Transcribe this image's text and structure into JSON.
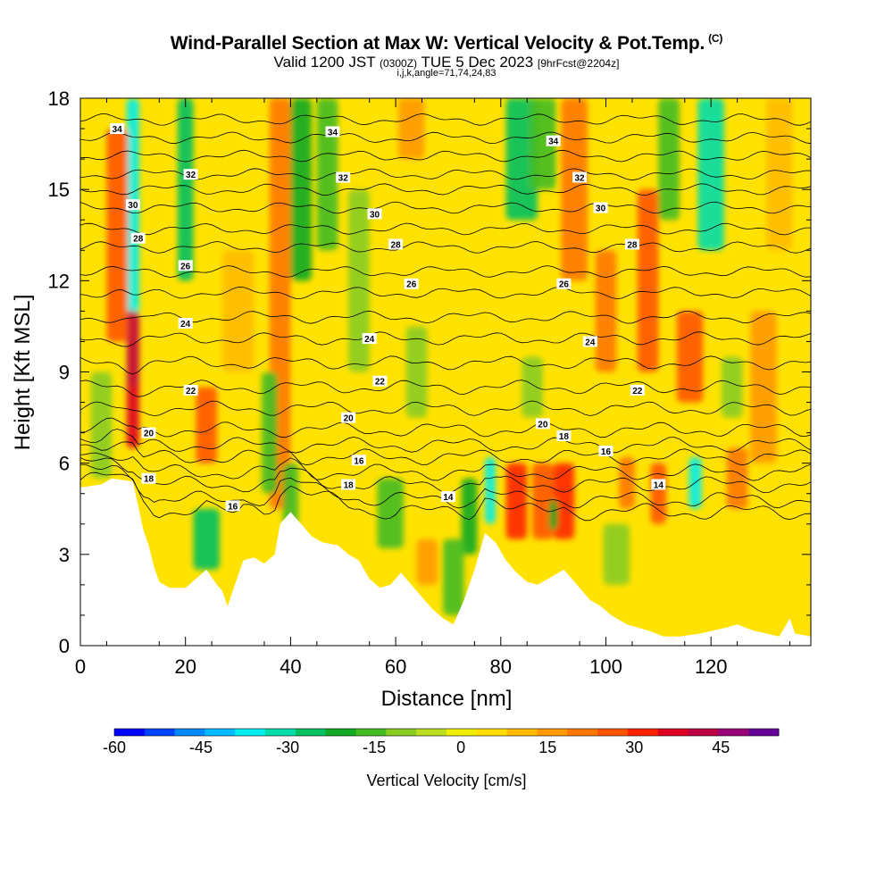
{
  "chart_data": {
    "type": "heatmap",
    "title": "Wind-Parallel Section at Max W: Vertical Velocity & Pot.Temp.",
    "title_mark": "(C)",
    "subtitle": {
      "valid": "Valid 1200 JST",
      "utc": "(0300Z)",
      "date": "TUE 5 Dec 2023",
      "fcst": "[9hrFcst@2204z]"
    },
    "params": "i,j,k,angle=71,74,24,83",
    "xlabel": "Distance [nm]",
    "ylabel": "Height [Kft MSL]",
    "xlim": [
      0,
      139
    ],
    "ylim": [
      0,
      18
    ],
    "xticks": [
      "0",
      "20",
      "40",
      "60",
      "80",
      "100",
      "120"
    ],
    "yticks": [
      "0",
      "3",
      "6",
      "9",
      "12",
      "15",
      "18"
    ],
    "colorbar": {
      "label": "Vertical Velocity [cm/s]",
      "range": [
        -60,
        55
      ],
      "ticks": [
        "-60",
        "-45",
        "-30",
        "-15",
        "0",
        "15",
        "30",
        "45"
      ],
      "colors": [
        "#0000ff",
        "#0044ff",
        "#0088ff",
        "#00bbff",
        "#00eeee",
        "#00ddaa",
        "#00c060",
        "#11aa22",
        "#44bb22",
        "#88cc22",
        "#bbdd22",
        "#eeee00",
        "#ffdd00",
        "#ffbb00",
        "#ff9900",
        "#ff7700",
        "#ff5500",
        "#ff2200",
        "#dd0022",
        "#bb0044",
        "#990077",
        "#660099"
      ]
    },
    "terrain": [
      [
        0,
        5.2
      ],
      [
        4,
        5.3
      ],
      [
        6,
        5.5
      ],
      [
        10,
        5.4
      ],
      [
        11,
        4.6
      ],
      [
        12,
        3.8
      ],
      [
        13,
        3.3
      ],
      [
        14,
        2.6
      ],
      [
        15,
        2.1
      ],
      [
        17,
        1.9
      ],
      [
        20,
        1.9
      ],
      [
        22,
        2.2
      ],
      [
        24,
        2.5
      ],
      [
        26,
        2.0
      ],
      [
        27,
        1.8
      ],
      [
        28,
        1.3
      ],
      [
        29,
        1.8
      ],
      [
        31,
        2.8
      ],
      [
        33,
        2.9
      ],
      [
        35,
        2.7
      ],
      [
        37,
        3.0
      ],
      [
        38,
        4.0
      ],
      [
        40,
        4.4
      ],
      [
        42,
        4.0
      ],
      [
        44,
        3.6
      ],
      [
        46,
        3.4
      ],
      [
        49,
        3.3
      ],
      [
        51,
        3.0
      ],
      [
        53,
        2.8
      ],
      [
        55,
        2.2
      ],
      [
        57,
        1.9
      ],
      [
        59,
        2.0
      ],
      [
        61,
        2.4
      ],
      [
        63,
        2.0
      ],
      [
        65,
        1.6
      ],
      [
        67,
        1.2
      ],
      [
        69,
        0.9
      ],
      [
        71,
        0.7
      ],
      [
        73,
        1.5
      ],
      [
        75,
        2.5
      ],
      [
        77,
        3.7
      ],
      [
        79,
        3.4
      ],
      [
        81,
        2.8
      ],
      [
        83,
        2.4
      ],
      [
        85,
        2.1
      ],
      [
        87,
        2.0
      ],
      [
        90,
        2.3
      ],
      [
        92,
        2.5
      ],
      [
        95,
        1.9
      ],
      [
        97,
        1.5
      ],
      [
        99,
        1.3
      ],
      [
        101,
        1.0
      ],
      [
        104,
        0.7
      ],
      [
        108,
        0.5
      ],
      [
        111,
        0.3
      ],
      [
        114,
        0.3
      ],
      [
        118,
        0.4
      ],
      [
        123,
        0.6
      ],
      [
        125,
        0.7
      ],
      [
        128,
        0.5
      ],
      [
        133,
        0.3
      ],
      [
        135,
        0.9
      ],
      [
        136,
        0.4
      ],
      [
        139,
        0.3
      ]
    ],
    "theta_levels": [
      {
        "theta": 14,
        "base": 4.4
      },
      {
        "theta": 15,
        "base": 4.8
      },
      {
        "theta": 16,
        "base": 5.3
      },
      {
        "theta": 17,
        "base": 5.7
      },
      {
        "theta": 18,
        "base": 6.2
      },
      {
        "theta": 19,
        "base": 6.6
      },
      {
        "theta": 20,
        "base": 7.1
      },
      {
        "theta": 21,
        "base": 7.8
      },
      {
        "theta": 22,
        "base": 8.5
      },
      {
        "theta": 23,
        "base": 9.3
      },
      {
        "theta": 24,
        "base": 10.1
      },
      {
        "theta": 25,
        "base": 10.8
      },
      {
        "theta": 26,
        "base": 11.6
      },
      {
        "theta": 27,
        "base": 12.3
      },
      {
        "theta": 28,
        "base": 13.1
      },
      {
        "theta": 29,
        "base": 13.7
      },
      {
        "theta": 30,
        "base": 14.4
      },
      {
        "theta": 31,
        "base": 15.0
      },
      {
        "theta": 32,
        "base": 15.5
      },
      {
        "theta": 33,
        "base": 16.1
      },
      {
        "theta": 34,
        "base": 16.7
      },
      {
        "theta": 35,
        "base": 17.3
      }
    ],
    "contour_labels": [
      {
        "text": "34",
        "x": 7,
        "y": 17.0
      },
      {
        "text": "34",
        "x": 48,
        "y": 16.9
      },
      {
        "text": "34",
        "x": 90,
        "y": 16.6
      },
      {
        "text": "32",
        "x": 21,
        "y": 15.5
      },
      {
        "text": "32",
        "x": 50,
        "y": 15.4
      },
      {
        "text": "32",
        "x": 95,
        "y": 15.4
      },
      {
        "text": "30",
        "x": 10,
        "y": 14.5
      },
      {
        "text": "30",
        "x": 56,
        "y": 14.2
      },
      {
        "text": "30",
        "x": 99,
        "y": 14.4
      },
      {
        "text": "28",
        "x": 11,
        "y": 13.4
      },
      {
        "text": "28",
        "x": 60,
        "y": 13.2
      },
      {
        "text": "28",
        "x": 105,
        "y": 13.2
      },
      {
        "text": "26",
        "x": 20,
        "y": 12.5
      },
      {
        "text": "26",
        "x": 63,
        "y": 11.9
      },
      {
        "text": "26",
        "x": 92,
        "y": 11.9
      },
      {
        "text": "24",
        "x": 20,
        "y": 10.6
      },
      {
        "text": "24",
        "x": 55,
        "y": 10.1
      },
      {
        "text": "24",
        "x": 97,
        "y": 10.0
      },
      {
        "text": "22",
        "x": 21,
        "y": 8.4
      },
      {
        "text": "22",
        "x": 57,
        "y": 8.7
      },
      {
        "text": "22",
        "x": 106,
        "y": 8.4
      },
      {
        "text": "20",
        "x": 13,
        "y": 7.0
      },
      {
        "text": "20",
        "x": 51,
        "y": 7.5
      },
      {
        "text": "20",
        "x": 88,
        "y": 7.3
      },
      {
        "text": "18",
        "x": 13,
        "y": 5.5
      },
      {
        "text": "18",
        "x": 51,
        "y": 5.3
      },
      {
        "text": "18",
        "x": 92,
        "y": 6.9
      },
      {
        "text": "16",
        "x": 53,
        "y": 6.1
      },
      {
        "text": "16",
        "x": 29,
        "y": 4.6
      },
      {
        "text": "16",
        "x": 100,
        "y": 6.4
      },
      {
        "text": "14",
        "x": 70,
        "y": 4.9
      },
      {
        "text": "14",
        "x": 110,
        "y": 5.3
      }
    ],
    "w_cells": [
      {
        "x": 10,
        "y0": 8.5,
        "y1": 18,
        "w": -38,
        "hw": 1.2
      },
      {
        "x": 10,
        "y0": 6.5,
        "y1": 11,
        "w": 35,
        "hw": 1.2
      },
      {
        "x": 7,
        "y0": 10,
        "y1": 17,
        "w": 25,
        "hw": 2.0
      },
      {
        "x": 20,
        "y0": 12,
        "y1": 18,
        "w": -25,
        "hw": 1.5
      },
      {
        "x": 24,
        "y0": 6,
        "y1": 8.5,
        "w": 28,
        "hw": 2.0
      },
      {
        "x": 24,
        "y0": 2.5,
        "y1": 4.5,
        "w": -25,
        "hw": 2.5
      },
      {
        "x": 38,
        "y0": 4.5,
        "y1": 18,
        "w": 22,
        "hw": 2.0
      },
      {
        "x": 42,
        "y0": 12,
        "y1": 18,
        "w": -22,
        "hw": 2.0
      },
      {
        "x": 47,
        "y0": 13,
        "y1": 18,
        "w": -18,
        "hw": 2.0
      },
      {
        "x": 53,
        "y0": 9,
        "y1": 15,
        "w": -12,
        "hw": 2.0
      },
      {
        "x": 36,
        "y0": 5,
        "y1": 9,
        "w": -15,
        "hw": 1.5
      },
      {
        "x": 40,
        "y0": 4,
        "y1": 6,
        "w": -18,
        "hw": 1.5
      },
      {
        "x": 59,
        "y0": 3.2,
        "y1": 5.5,
        "w": -16,
        "hw": 2.5
      },
      {
        "x": 74,
        "y0": 3,
        "y1": 5.5,
        "w": -22,
        "hw": 1.5
      },
      {
        "x": 78,
        "y0": 4,
        "y1": 6.2,
        "w": -35,
        "hw": 1.0
      },
      {
        "x": 71,
        "y0": 1,
        "y1": 3.5,
        "w": -18,
        "hw": 2.0
      },
      {
        "x": 83,
        "y0": 3.5,
        "y1": 6,
        "w": 30,
        "hw": 2.0
      },
      {
        "x": 88,
        "y0": 3.5,
        "y1": 6,
        "w": 28,
        "hw": 2.0
      },
      {
        "x": 92,
        "y0": 3.5,
        "y1": 6,
        "w": 33,
        "hw": 2.0
      },
      {
        "x": 90,
        "y0": 3.8,
        "y1": 4.8,
        "w": -22,
        "hw": 0.8
      },
      {
        "x": 84,
        "y0": 14,
        "y1": 18,
        "w": -25,
        "hw": 3.0
      },
      {
        "x": 88,
        "y0": 15,
        "y1": 18,
        "w": -15,
        "hw": 2.5
      },
      {
        "x": 94,
        "y0": 12,
        "y1": 18,
        "w": 20,
        "hw": 2.5
      },
      {
        "x": 100,
        "y0": 9,
        "y1": 13,
        "w": 22,
        "hw": 2.0
      },
      {
        "x": 108,
        "y0": 9,
        "y1": 15,
        "w": 25,
        "hw": 2.0
      },
      {
        "x": 112,
        "y0": 14,
        "y1": 18,
        "w": -18,
        "hw": 2.0
      },
      {
        "x": 120,
        "y0": 13,
        "y1": 18,
        "w": -32,
        "hw": 2.5
      },
      {
        "x": 116,
        "y0": 8,
        "y1": 11,
        "w": 28,
        "hw": 2.5
      },
      {
        "x": 117,
        "y0": 4.5,
        "y1": 6.2,
        "w": -35,
        "hw": 1.2
      },
      {
        "x": 110,
        "y0": 4,
        "y1": 6,
        "w": 25,
        "hw": 1.5
      },
      {
        "x": 104,
        "y0": 4.5,
        "y1": 6.2,
        "w": 22,
        "hw": 1.5
      },
      {
        "x": 125,
        "y0": 4.5,
        "y1": 6.5,
        "w": 20,
        "hw": 2.0
      },
      {
        "x": 130,
        "y0": 6,
        "y1": 11,
        "w": 15,
        "hw": 2.5
      },
      {
        "x": 133,
        "y0": 13,
        "y1": 18,
        "w": 12,
        "hw": 2.5
      },
      {
        "x": 64,
        "y0": 7.5,
        "y1": 10.5,
        "w": -10,
        "hw": 2.0
      },
      {
        "x": 86,
        "y0": 7.5,
        "y1": 9.5,
        "w": -12,
        "hw": 2.0
      },
      {
        "x": 124,
        "y0": 7.5,
        "y1": 9.5,
        "w": -12,
        "hw": 2.0
      },
      {
        "x": 102,
        "y0": 2,
        "y1": 4,
        "w": -10,
        "hw": 2.5
      },
      {
        "x": 63,
        "y0": 16,
        "y1": 18,
        "w": 18,
        "hw": 2.5
      },
      {
        "x": 30,
        "y0": 9,
        "y1": 13,
        "w": 12,
        "hw": 3.0
      },
      {
        "x": 4,
        "y0": 5.5,
        "y1": 9,
        "w": -10,
        "hw": 2.0
      },
      {
        "x": 66,
        "y0": 2,
        "y1": 3.5,
        "w": 15,
        "hw": 2.0
      }
    ]
  }
}
